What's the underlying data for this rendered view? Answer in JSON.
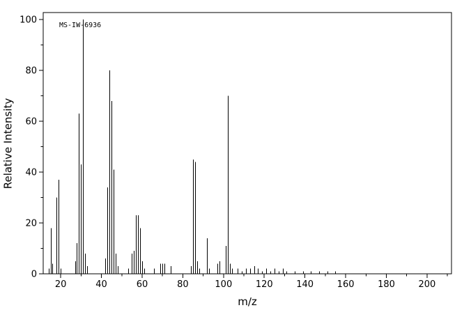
{
  "chart_data": {
    "type": "bar",
    "subtype": "mass-spectrum-stick-plot",
    "annotation": "MS-IW-6936",
    "xlabel": "m/z",
    "ylabel": "Relative Intensity",
    "xlim": [
      11.4,
      212
    ],
    "ylim": [
      0,
      100
    ],
    "x_ticks": [
      20,
      40,
      60,
      80,
      100,
      120,
      140,
      160,
      180,
      200
    ],
    "y_ticks": [
      0,
      20,
      40,
      60,
      80,
      100
    ],
    "grid": "off",
    "legend": "none",
    "line_color": "#000000",
    "background_color": "#ffffff",
    "peaks": [
      {
        "mz": 14,
        "intensity": 2
      },
      {
        "mz": 15,
        "intensity": 18
      },
      {
        "mz": 16,
        "intensity": 4
      },
      {
        "mz": 18,
        "intensity": 30
      },
      {
        "mz": 19,
        "intensity": 37
      },
      {
        "mz": 20,
        "intensity": 2
      },
      {
        "mz": 27,
        "intensity": 5
      },
      {
        "mz": 28,
        "intensity": 12
      },
      {
        "mz": 29,
        "intensity": 63
      },
      {
        "mz": 30,
        "intensity": 43
      },
      {
        "mz": 31,
        "intensity": 100
      },
      {
        "mz": 32,
        "intensity": 8
      },
      {
        "mz": 33,
        "intensity": 3
      },
      {
        "mz": 42,
        "intensity": 6
      },
      {
        "mz": 43,
        "intensity": 34
      },
      {
        "mz": 44,
        "intensity": 80
      },
      {
        "mz": 45,
        "intensity": 68
      },
      {
        "mz": 46,
        "intensity": 41
      },
      {
        "mz": 47,
        "intensity": 8
      },
      {
        "mz": 48,
        "intensity": 3
      },
      {
        "mz": 53,
        "intensity": 2
      },
      {
        "mz": 55,
        "intensity": 8
      },
      {
        "mz": 56,
        "intensity": 9
      },
      {
        "mz": 57,
        "intensity": 23
      },
      {
        "mz": 58,
        "intensity": 23
      },
      {
        "mz": 59,
        "intensity": 18
      },
      {
        "mz": 60,
        "intensity": 5
      },
      {
        "mz": 61,
        "intensity": 2
      },
      {
        "mz": 66,
        "intensity": 2
      },
      {
        "mz": 69,
        "intensity": 4
      },
      {
        "mz": 70,
        "intensity": 4
      },
      {
        "mz": 71,
        "intensity": 4
      },
      {
        "mz": 74,
        "intensity": 3
      },
      {
        "mz": 84,
        "intensity": 3
      },
      {
        "mz": 85,
        "intensity": 45
      },
      {
        "mz": 86,
        "intensity": 44
      },
      {
        "mz": 87,
        "intensity": 5
      },
      {
        "mz": 88,
        "intensity": 2
      },
      {
        "mz": 92,
        "intensity": 14
      },
      {
        "mz": 93,
        "intensity": 2
      },
      {
        "mz": 97,
        "intensity": 4
      },
      {
        "mz": 98,
        "intensity": 5
      },
      {
        "mz": 101,
        "intensity": 11
      },
      {
        "mz": 102,
        "intensity": 70
      },
      {
        "mz": 103,
        "intensity": 4
      },
      {
        "mz": 104,
        "intensity": 2
      },
      {
        "mz": 107,
        "intensity": 2
      },
      {
        "mz": 109,
        "intensity": 1
      },
      {
        "mz": 111,
        "intensity": 2
      },
      {
        "mz": 113,
        "intensity": 2
      },
      {
        "mz": 115,
        "intensity": 3
      },
      {
        "mz": 117,
        "intensity": 2
      },
      {
        "mz": 119,
        "intensity": 1
      },
      {
        "mz": 121,
        "intensity": 2
      },
      {
        "mz": 123,
        "intensity": 1
      },
      {
        "mz": 125,
        "intensity": 2
      },
      {
        "mz": 127,
        "intensity": 1
      },
      {
        "mz": 129,
        "intensity": 2
      },
      {
        "mz": 131,
        "intensity": 1
      },
      {
        "mz": 135,
        "intensity": 1
      },
      {
        "mz": 139,
        "intensity": 1
      },
      {
        "mz": 143,
        "intensity": 1
      },
      {
        "mz": 147,
        "intensity": 1
      },
      {
        "mz": 151,
        "intensity": 1
      },
      {
        "mz": 155,
        "intensity": 1
      }
    ]
  }
}
